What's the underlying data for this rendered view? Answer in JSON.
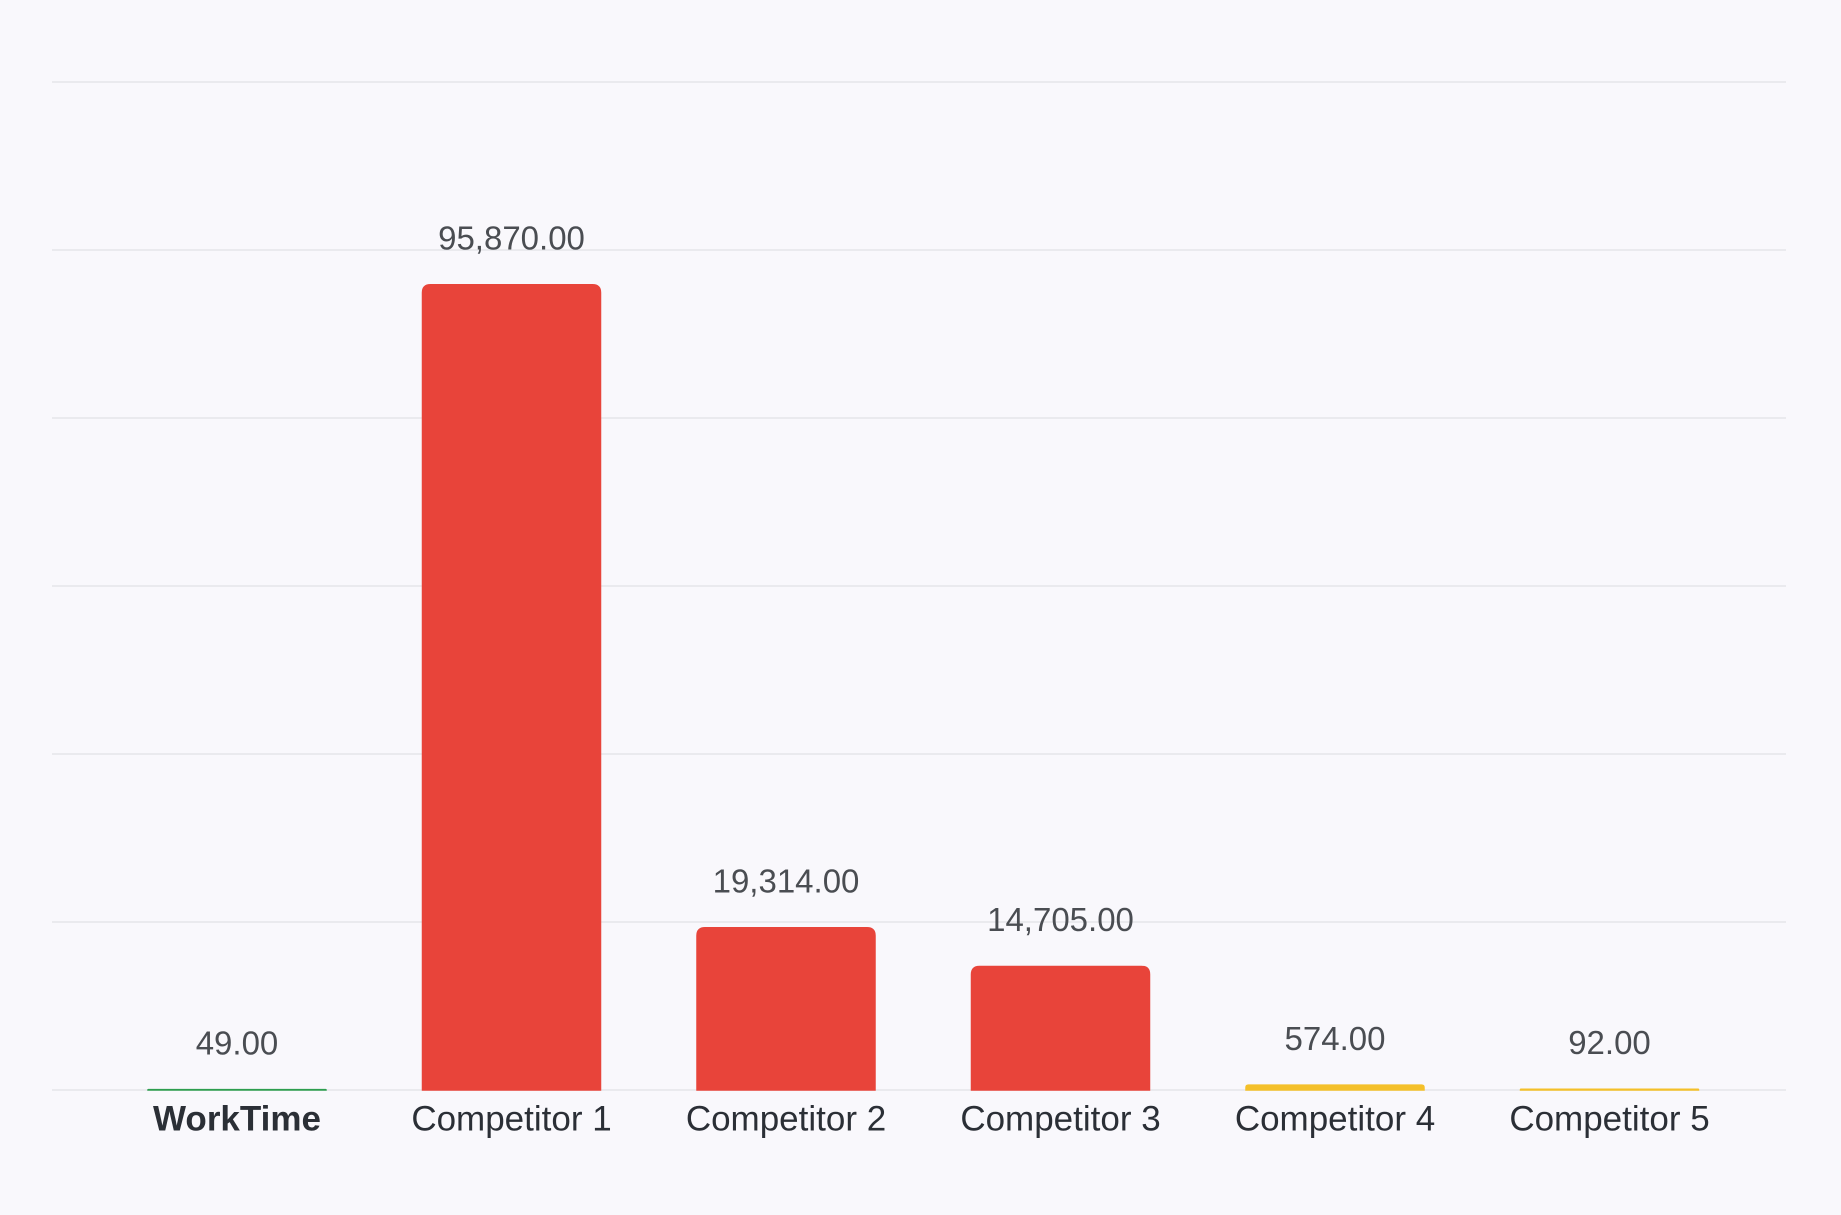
{
  "chart_data": {
    "type": "bar",
    "categories": [
      "WorkTime",
      "Competitor 1",
      "Competitor 2",
      "Competitor 3",
      "Competitor 4",
      "Competitor 5"
    ],
    "values": [
      49,
      95870,
      19314,
      14705,
      574,
      92
    ],
    "value_labels": [
      "49.00",
      "95,870.00",
      "19,314.00",
      "14,705.00",
      "574.00",
      "92.00"
    ],
    "colors": [
      "#2e9e4f",
      "#e8443a",
      "#e8443a",
      "#e8443a",
      "#f4c02a",
      "#f4c02a"
    ],
    "ylim": [
      0,
      120000
    ],
    "yticks": [
      0,
      20000,
      40000,
      60000,
      80000,
      100000,
      120000
    ],
    "grid": true
  }
}
